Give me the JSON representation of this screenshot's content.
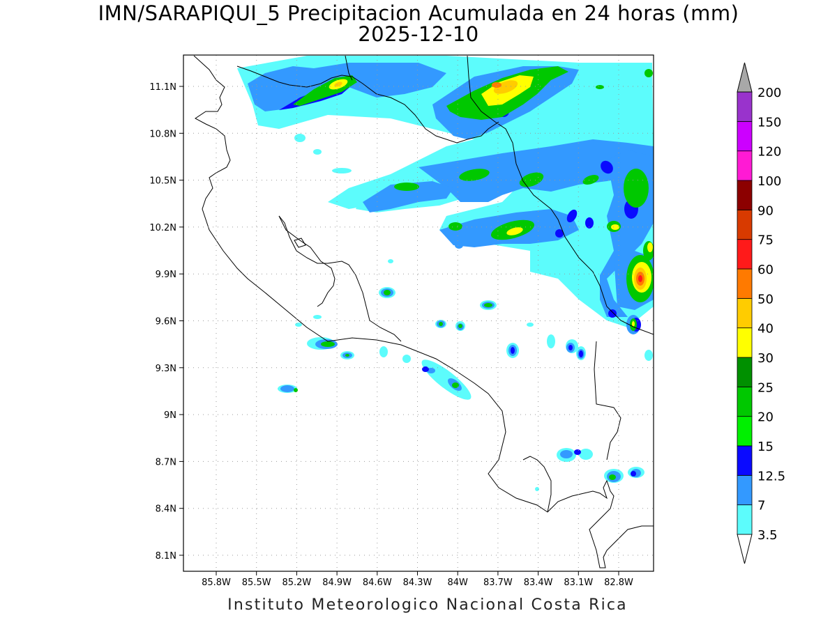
{
  "title": {
    "line1": "IMN/SARAPIQUI_5 Precipitacion Acumulada en 24 horas (mm)",
    "line2": "2025-12-10"
  },
  "footer": "Instituto Meteorologico Nacional Costa Rica",
  "map": {
    "lon_range": [
      -86.05,
      -82.5
    ],
    "lat_range": [
      8.05,
      11.35
    ],
    "lat_ticks": [
      {
        "value": 11.1,
        "label": "11.1N"
      },
      {
        "value": 10.8,
        "label": "10.8N"
      },
      {
        "value": 10.5,
        "label": "10.5N"
      },
      {
        "value": 10.2,
        "label": "10.2N"
      },
      {
        "value": 9.9,
        "label": "9.9N"
      },
      {
        "value": 9.6,
        "label": "9.6N"
      },
      {
        "value": 9.3,
        "label": "9.3N"
      },
      {
        "value": 9.0,
        "label": "9N"
      },
      {
        "value": 8.7,
        "label": "8.7N"
      },
      {
        "value": 8.4,
        "label": "8.4N"
      },
      {
        "value": 8.1,
        "label": "8.1N"
      }
    ],
    "lon_ticks": [
      {
        "value": -85.8,
        "label": "85.8W"
      },
      {
        "value": -85.5,
        "label": "85.5W"
      },
      {
        "value": -85.2,
        "label": "85.2W"
      },
      {
        "value": -84.9,
        "label": "84.9W"
      },
      {
        "value": -84.6,
        "label": "84.6W"
      },
      {
        "value": -84.3,
        "label": "84.3W"
      },
      {
        "value": -84.0,
        "label": "84W"
      },
      {
        "value": -83.7,
        "label": "83.7W"
      },
      {
        "value": -83.4,
        "label": "83.4W"
      },
      {
        "value": -83.1,
        "label": "83.1W"
      },
      {
        "value": -82.8,
        "label": "82.8W"
      }
    ],
    "grid": true
  },
  "colorbar": {
    "labels": [
      "3.5",
      "7",
      "12.5",
      "15",
      "20",
      "25",
      "30",
      "40",
      "50",
      "60",
      "75",
      "90",
      "100",
      "120",
      "150",
      "200"
    ],
    "colors": [
      "#5cfcfc",
      "#3399ff",
      "#0a0aff",
      "#00f000",
      "#00c800",
      "#009000",
      "#ffff00",
      "#ffcc00",
      "#ff7a00",
      "#ff1a1a",
      "#d83a00",
      "#8c0000",
      "#ff1ad4",
      "#cc00ff",
      "#9933cc",
      "#f2f2f2",
      "#a8a8a8"
    ],
    "units": "mm"
  },
  "precip_cells": [
    {
      "lon": -84.9,
      "lat": 11.1,
      "rx": 0.28,
      "ry": 0.07,
      "rot": -25,
      "level": 7
    },
    {
      "lon": -85.05,
      "lat": 11.02,
      "rx": 0.35,
      "ry": 0.1,
      "rot": -20,
      "level": 2
    },
    {
      "lon": -84.2,
      "lat": 11.05,
      "rx": 0.35,
      "ry": 0.1,
      "rot": -15,
      "level": 1
    },
    {
      "lon": -83.65,
      "lat": 11.05,
      "rx": 0.35,
      "ry": 0.15,
      "rot": -15,
      "level": 7
    },
    {
      "lon": -83.5,
      "lat": 11.1,
      "rx": 0.55,
      "ry": 0.22,
      "rot": -15,
      "level": 4
    },
    {
      "lon": -83.2,
      "lat": 11.1,
      "rx": 0.4,
      "ry": 0.15,
      "rot": -20,
      "level": 1
    },
    {
      "lon": -84.0,
      "lat": 10.85,
      "rx": 0.45,
      "ry": 0.08,
      "rot": -10,
      "level": 1
    },
    {
      "lon": -83.3,
      "lat": 10.85,
      "rx": 0.5,
      "ry": 0.12,
      "rot": -15,
      "level": 1
    },
    {
      "lon": -83.75,
      "lat": 10.55,
      "rx": 0.15,
      "ry": 0.05,
      "rot": -10,
      "level": 4
    },
    {
      "lon": -84.3,
      "lat": 10.45,
      "rx": 0.15,
      "ry": 0.05,
      "rot": -10,
      "level": 4
    },
    {
      "lon": -83.45,
      "lat": 10.45,
      "rx": 0.15,
      "ry": 0.06,
      "rot": -15,
      "level": 4
    },
    {
      "lon": -83.2,
      "lat": 10.5,
      "rx": 0.5,
      "ry": 0.15,
      "rot": -20,
      "level": 1
    },
    {
      "lon": -84.0,
      "lat": 10.45,
      "rx": 0.6,
      "ry": 0.1,
      "rot": -15,
      "level": 1
    },
    {
      "lon": -82.95,
      "lat": 10.5,
      "rx": 0.2,
      "ry": 0.05,
      "rot": -20,
      "level": 4
    },
    {
      "lon": -83.55,
      "lat": 10.18,
      "rx": 0.15,
      "ry": 0.06,
      "rot": -15,
      "level": 7
    },
    {
      "lon": -83.5,
      "lat": 10.2,
      "rx": 0.35,
      "ry": 0.1,
      "rot": -20,
      "level": 2
    },
    {
      "lon": -84.0,
      "lat": 10.2,
      "rx": 0.1,
      "ry": 0.04,
      "rot": -10,
      "level": 4
    },
    {
      "lon": -82.8,
      "lat": 10.2,
      "rx": 0.1,
      "ry": 0.05,
      "rot": -20,
      "level": 7
    },
    {
      "lon": -82.65,
      "lat": 10.35,
      "rx": 0.15,
      "ry": 0.35,
      "rot": 10,
      "level": 4
    },
    {
      "lon": -82.6,
      "lat": 9.85,
      "rx": 0.1,
      "ry": 0.08,
      "rot": 0,
      "level": 9
    },
    {
      "lon": -82.65,
      "lat": 9.85,
      "rx": 0.18,
      "ry": 0.15,
      "rot": 0,
      "level": 7
    },
    {
      "lon": -82.72,
      "lat": 9.85,
      "rx": 0.28,
      "ry": 0.25,
      "rot": 0,
      "level": 4
    },
    {
      "lon": -82.68,
      "lat": 9.58,
      "rx": 0.05,
      "ry": 0.05,
      "rot": 0,
      "level": 6
    },
    {
      "lon": -84.48,
      "lat": 9.78,
      "rx": 0.05,
      "ry": 0.03,
      "rot": 0,
      "level": 4
    },
    {
      "lon": -83.75,
      "lat": 9.7,
      "rx": 0.06,
      "ry": 0.03,
      "rot": -10,
      "level": 4
    },
    {
      "lon": -84.88,
      "lat": 9.45,
      "rx": 0.07,
      "ry": 0.03,
      "rot": 0,
      "level": 4
    },
    {
      "lon": -84.82,
      "lat": 9.38,
      "rx": 0.04,
      "ry": 0.02,
      "rot": 0,
      "level": 4
    },
    {
      "lon": -85.17,
      "lat": 9.15,
      "rx": 0.03,
      "ry": 0.02,
      "rot": 0,
      "level": 4
    },
    {
      "lon": -84.08,
      "lat": 9.57,
      "rx": 0.03,
      "ry": 0.02,
      "rot": 0,
      "level": 4
    },
    {
      "lon": -83.95,
      "lat": 9.56,
      "rx": 0.03,
      "ry": 0.02,
      "rot": 0,
      "level": 4
    },
    {
      "lon": -84.0,
      "lat": 9.18,
      "rx": 0.05,
      "ry": 0.03,
      "rot": -40,
      "level": 4
    },
    {
      "lon": -84.15,
      "lat": 9.28,
      "rx": 0.04,
      "ry": 0.02,
      "rot": -20,
      "level": 2
    },
    {
      "lon": -83.55,
      "lat": 9.4,
      "rx": 0.03,
      "ry": 0.03,
      "rot": 0,
      "level": 4
    },
    {
      "lon": -83.1,
      "lat": 9.42,
      "rx": 0.03,
      "ry": 0.03,
      "rot": 0,
      "level": 4
    },
    {
      "lon": -83.05,
      "lat": 9.4,
      "rx": 0.03,
      "ry": 0.02,
      "rot": 0,
      "level": 2
    },
    {
      "lon": -82.8,
      "lat": 8.6,
      "rx": 0.04,
      "ry": 0.03,
      "rot": 0,
      "level": 4
    },
    {
      "lon": -82.65,
      "lat": 8.6,
      "rx": 0.03,
      "ry": 0.03,
      "rot": 0,
      "level": 2
    },
    {
      "lon": -83.2,
      "lat": 8.72,
      "rx": 0.03,
      "ry": 0.02,
      "rot": 0,
      "level": 2
    },
    {
      "lon": -83.05,
      "lat": 8.74,
      "rx": 0.03,
      "ry": 0.02,
      "rot": 0,
      "level": 2
    }
  ]
}
